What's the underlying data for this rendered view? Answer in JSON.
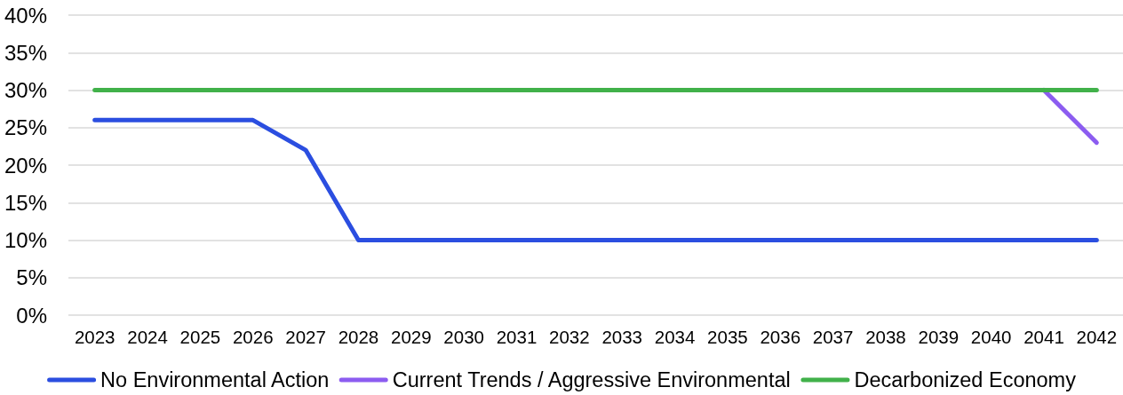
{
  "chart_data": {
    "type": "line",
    "categories": [
      "2023",
      "2024",
      "2025",
      "2026",
      "2027",
      "2028",
      "2029",
      "2030",
      "2031",
      "2032",
      "2033",
      "2034",
      "2035",
      "2036",
      "2037",
      "2038",
      "2039",
      "2040",
      "2041",
      "2042"
    ],
    "series": [
      {
        "name": "No Environmental Action",
        "color": "#2b4ee0",
        "values": [
          26,
          26,
          26,
          26,
          22,
          10,
          10,
          10,
          10,
          10,
          10,
          10,
          10,
          10,
          10,
          10,
          10,
          10,
          10,
          10
        ]
      },
      {
        "name": "Current Trends / Aggressive Environmental",
        "color": "#8c5cf0",
        "values": [
          null,
          null,
          null,
          null,
          null,
          null,
          null,
          null,
          null,
          null,
          null,
          null,
          null,
          null,
          null,
          null,
          null,
          null,
          30,
          23
        ]
      },
      {
        "name": "Decarbonized Economy",
        "color": "#41b14a",
        "values": [
          30,
          30,
          30,
          30,
          30,
          30,
          30,
          30,
          30,
          30,
          30,
          30,
          30,
          30,
          30,
          30,
          30,
          30,
          30,
          30
        ]
      }
    ],
    "ylim": [
      0,
      40
    ],
    "yticks": [
      {
        "value": 0,
        "label": "0%"
      },
      {
        "value": 5,
        "label": "5%"
      },
      {
        "value": 10,
        "label": "10%"
      },
      {
        "value": 15,
        "label": "15%"
      },
      {
        "value": 20,
        "label": "20%"
      },
      {
        "value": 25,
        "label": "25%"
      },
      {
        "value": 30,
        "label": "30%"
      },
      {
        "value": 35,
        "label": "35%"
      },
      {
        "value": 40,
        "label": "40%"
      }
    ],
    "grid": "y",
    "legend": "bottom",
    "marker": "none",
    "line_style": "solid"
  }
}
